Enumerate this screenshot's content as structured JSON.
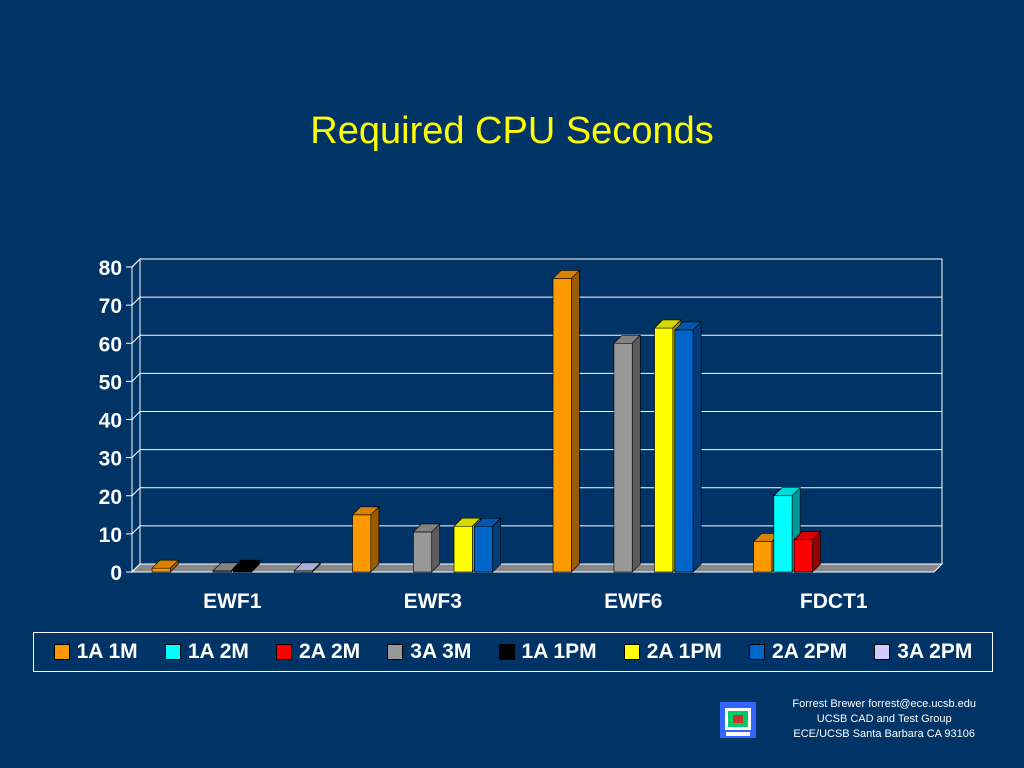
{
  "slide": {
    "title": "Required CPU Seconds",
    "footer": {
      "line1": "Forrest Brewer  forrest@ece.ucsb.edu",
      "line2": "UCSB CAD and Test Group",
      "line3": "ECE/UCSB Santa Barbara CA 93106"
    },
    "logo_icon": "ucsb-logo-icon"
  },
  "chart_data": {
    "type": "bar",
    "title": "Required CPU Seconds",
    "categories": [
      "EWF1",
      "EWF3",
      "EWF6",
      "FDCT1"
    ],
    "yticks": [
      "0",
      "10",
      "20",
      "30",
      "40",
      "50",
      "60",
      "70",
      "80"
    ],
    "ylim": [
      0,
      80
    ],
    "grid": true,
    "legend_position": "bottom",
    "three_d": true,
    "series": [
      {
        "name": "1A 1M",
        "color": "#ff9900",
        "values": [
          1,
          15,
          77,
          8
        ]
      },
      {
        "name": "1A 2M",
        "color": "#00ffff",
        "values": [
          0,
          0,
          0,
          20
        ]
      },
      {
        "name": "2A 2M",
        "color": "#ff0000",
        "values": [
          0,
          0,
          0,
          8.5
        ]
      },
      {
        "name": "3A 3M",
        "color": "#999999",
        "values": [
          0.3,
          10.5,
          60,
          0
        ]
      },
      {
        "name": "1A 1PM",
        "color": "#000000",
        "values": [
          1,
          0,
          0,
          0
        ]
      },
      {
        "name": "2A 1PM",
        "color": "#ffff00",
        "values": [
          0,
          12,
          64,
          0
        ]
      },
      {
        "name": "2A 2PM",
        "color": "#0066cc",
        "values": [
          0,
          12,
          63.5,
          0
        ]
      },
      {
        "name": "3A 2PM",
        "color": "#ccccff",
        "values": [
          0.3,
          0,
          0,
          0
        ]
      }
    ]
  }
}
